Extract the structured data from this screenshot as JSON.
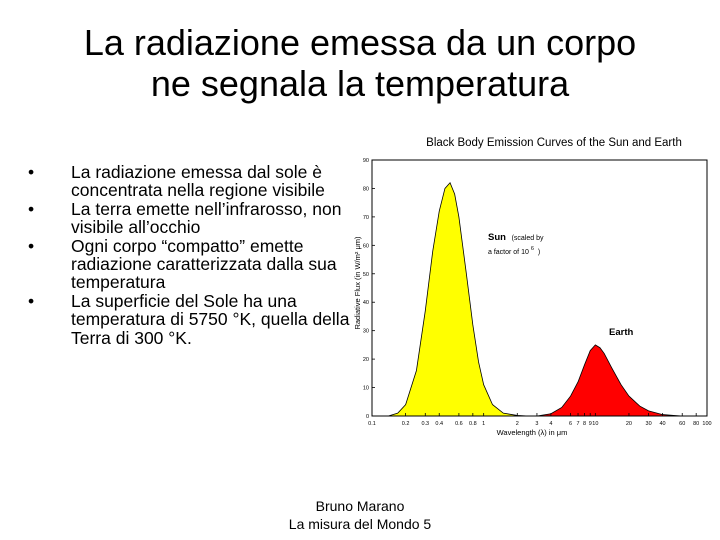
{
  "slide": {
    "title_line1": "La radiazione emessa da un corpo",
    "title_line2": "ne segnala la temperatura",
    "bullet_glyph": "•",
    "bullets": [
      "La radiazione emessa dal sole è concentrata nella regione visibile",
      "La terra emette nell’infrarosso, non visibile all’occhio",
      "Ogni corpo “compatto” emette radiazione caratterizzata dalla sua temperatura",
      "La superficie del Sole ha una temperatura di  5750 °K, quella della Terra di 300 °K."
    ],
    "footer_line1": "Bruno Marano",
    "footer_line2": "La misura del Mondo 5"
  },
  "chart_data": {
    "type": "area",
    "title": "Black Body Emission Curves of the Sun and Earth",
    "xlabel": "Wavelength (λ) in μm",
    "ylabel": "Radiative Flux (in W/m² μm)",
    "x_scale": "log",
    "xlim": [
      0.1,
      100
    ],
    "ylim": [
      0,
      90
    ],
    "x_ticks": [
      {
        "v": 0.1,
        "label": "0.1"
      },
      {
        "v": 0.2,
        "label": "0.2"
      },
      {
        "v": 0.3,
        "label": "0.3"
      },
      {
        "v": 0.4,
        "label": "0.4"
      },
      {
        "v": 0.6,
        "label": "0.6"
      },
      {
        "v": 0.8,
        "label": "0.8"
      },
      {
        "v": 1,
        "label": "1"
      },
      {
        "v": 2,
        "label": "2"
      },
      {
        "v": 3,
        "label": "3"
      },
      {
        "v": 4,
        "label": "4"
      },
      {
        "v": 6,
        "label": "6"
      },
      {
        "v": 7,
        "label": "7"
      },
      {
        "v": 8,
        "label": "8"
      },
      {
        "v": 9,
        "label": "9"
      },
      {
        "v": 10,
        "label": "10"
      },
      {
        "v": 20,
        "label": "20"
      },
      {
        "v": 30,
        "label": "30"
      },
      {
        "v": 40,
        "label": "40"
      },
      {
        "v": 60,
        "label": "60"
      },
      {
        "v": 80,
        "label": "80"
      },
      {
        "v": 100,
        "label": "100"
      }
    ],
    "y_ticks": [
      0,
      10,
      20,
      30,
      40,
      50,
      60,
      70,
      80,
      90
    ],
    "series": [
      {
        "name": "Sun",
        "annotation_line1": "Sun",
        "annotation_scaled": "(scaled by",
        "annotation_line2": "a factor of 10",
        "annotation_exp": "6",
        "annotation_close": ")",
        "color": "#ffff00",
        "peak_x": 0.5,
        "peak_y": 82,
        "spread": 0.2,
        "x": [
          0.14,
          0.17,
          0.2,
          0.25,
          0.3,
          0.35,
          0.4,
          0.45,
          0.5,
          0.55,
          0.6,
          0.7,
          0.8,
          0.9,
          1.0,
          1.2,
          1.5,
          2.0,
          2.5
        ],
        "y": [
          0,
          1,
          4,
          16,
          37,
          58,
          72,
          80,
          82,
          78,
          70,
          50,
          32,
          19,
          11,
          4,
          1,
          0.2,
          0
        ]
      },
      {
        "name": "Earth",
        "annotation_line1": "Earth",
        "color": "#ff0000",
        "peak_x": 10,
        "peak_y": 25,
        "spread": 0.25,
        "x": [
          3,
          4,
          5,
          6,
          7,
          8,
          9,
          10,
          11,
          12,
          14,
          17,
          20,
          25,
          30,
          40,
          50,
          60
        ],
        "y": [
          0,
          0.8,
          3,
          7,
          12,
          18,
          23,
          25,
          24,
          22,
          17,
          11,
          7,
          3.5,
          1.8,
          0.5,
          0.2,
          0
        ]
      }
    ],
    "grid": false,
    "legend": "none"
  }
}
